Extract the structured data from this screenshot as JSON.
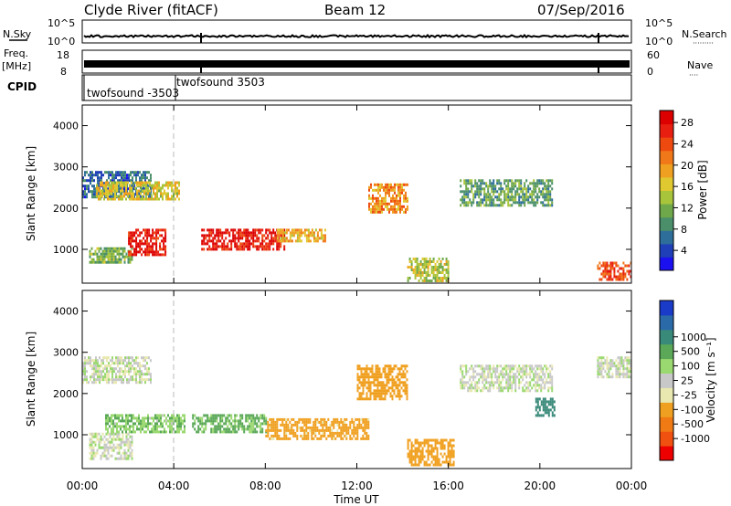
{
  "header": {
    "title": "Clyde River (fitACF)",
    "beam": "Beam 12",
    "date": "07/Sep/2016"
  },
  "panels": {
    "nsky_label": "N.Sky",
    "nsearch_label": "N.Search",
    "nsearch_dots": "·········",
    "freq_label": "Freq.",
    "freq_unit": "[MHz]",
    "nave_label": "Nave",
    "nave_dots": "····",
    "cpid_label": "CPID",
    "left_ticks_sky": [
      "10^5",
      "10^0"
    ],
    "right_ticks_sky": [
      "10^5",
      "10^0"
    ],
    "left_ticks_freq": [
      "18",
      "8"
    ],
    "right_ticks_freq": [
      "60",
      "0"
    ],
    "cpid_entries": [
      {
        "text": "twofsound -3503"
      },
      {
        "text": "twofsound 3503"
      }
    ]
  },
  "colorbars": {
    "power_label": "Power [dB]",
    "power_colors": [
      "#1a10f0",
      "#1f3fb8",
      "#2e6e9a",
      "#4a8f6a",
      "#6fa84a",
      "#a8c43a",
      "#e0c830",
      "#f0a020",
      "#f07818",
      "#ee4a10",
      "#e81e10",
      "#dc0000"
    ],
    "power_ticks": [
      "4",
      "8",
      "12",
      "16",
      "20",
      "24",
      "28"
    ],
    "velocity_label": "Velocity [m s⁻¹]",
    "velocity_colors": [
      "#ee0000",
      "#f05010",
      "#f07a14",
      "#f0a020",
      "#e8e8b0",
      "#c8c8c8",
      "#9ad870",
      "#5aa858",
      "#3a8a7a",
      "#2a6aa8",
      "#1a3ac8"
    ],
    "velocity_ticks": [
      "-1000",
      "-500",
      "-100",
      "-25",
      "25",
      "100",
      "500",
      "1000"
    ]
  },
  "axes": {
    "ylabel": "Slant Range [km]",
    "xlabel": "Time UT",
    "xticks": [
      "00:00",
      "04:00",
      "08:00",
      "12:00",
      "16:00",
      "20:00",
      "00:00"
    ],
    "yticks": [
      "1000",
      "2000",
      "3000",
      "4000"
    ]
  },
  "chart_data": [
    {
      "type": "heatmap",
      "title": "",
      "xlabel": "Time UT",
      "ylabel": "Slant Range [km]",
      "xlim": [
        0,
        24
      ],
      "ylim": [
        180,
        4500
      ],
      "colorbar": "Power [dB]",
      "clim": [
        0,
        30
      ],
      "regions": [
        {
          "t": [
            0.0,
            3.0
          ],
          "r": [
            2300,
            2900
          ],
          "value": 6
        },
        {
          "t": [
            0.6,
            4.2
          ],
          "r": [
            2250,
            2650
          ],
          "value": 16
        },
        {
          "t": [
            0.3,
            2.2
          ],
          "r": [
            700,
            1050
          ],
          "value": 12
        },
        {
          "t": [
            2.0,
            3.6
          ],
          "r": [
            900,
            1500
          ],
          "value": 27
        },
        {
          "t": [
            5.2,
            8.8
          ],
          "r": [
            1000,
            1500
          ],
          "value": 27
        },
        {
          "t": [
            8.5,
            10.6
          ],
          "r": [
            1200,
            1500
          ],
          "value": 18
        },
        {
          "t": [
            12.5,
            14.2
          ],
          "r": [
            1900,
            2600
          ],
          "value": 20
        },
        {
          "t": [
            14.2,
            16.0
          ],
          "r": [
            250,
            800
          ],
          "value": 14
        },
        {
          "t": [
            16.5,
            20.5
          ],
          "r": [
            2100,
            2700
          ],
          "value": 10
        },
        {
          "t": [
            22.5,
            24.0
          ],
          "r": [
            300,
            700
          ],
          "value": 24
        }
      ]
    },
    {
      "type": "heatmap",
      "title": "",
      "xlabel": "Time UT",
      "ylabel": "Slant Range [km]",
      "xlim": [
        0,
        24
      ],
      "ylim": [
        180,
        4500
      ],
      "colorbar": "Velocity [m s⁻¹]",
      "clim": [
        -1000,
        1000
      ],
      "regions": [
        {
          "t": [
            0.0,
            3.0
          ],
          "r": [
            2300,
            2900
          ],
          "value": 0
        },
        {
          "t": [
            0.3,
            2.2
          ],
          "r": [
            400,
            1050
          ],
          "value": 0
        },
        {
          "t": [
            1.0,
            4.5
          ],
          "r": [
            1050,
            1500
          ],
          "value": 80
        },
        {
          "t": [
            4.8,
            8.0
          ],
          "r": [
            1100,
            1500
          ],
          "value": 120
        },
        {
          "t": [
            8.0,
            12.5
          ],
          "r": [
            900,
            1400
          ],
          "value": -150
        },
        {
          "t": [
            12.0,
            14.2
          ],
          "r": [
            1900,
            2700
          ],
          "value": -400
        },
        {
          "t": [
            14.2,
            16.2
          ],
          "r": [
            250,
            900
          ],
          "value": -200
        },
        {
          "t": [
            16.5,
            20.5
          ],
          "r": [
            2100,
            2700
          ],
          "value": 0
        },
        {
          "t": [
            19.8,
            20.6
          ],
          "r": [
            1500,
            1900
          ],
          "value": 600
        },
        {
          "t": [
            22.5,
            24.0
          ],
          "r": [
            2400,
            2900
          ],
          "value": 0
        }
      ]
    }
  ]
}
